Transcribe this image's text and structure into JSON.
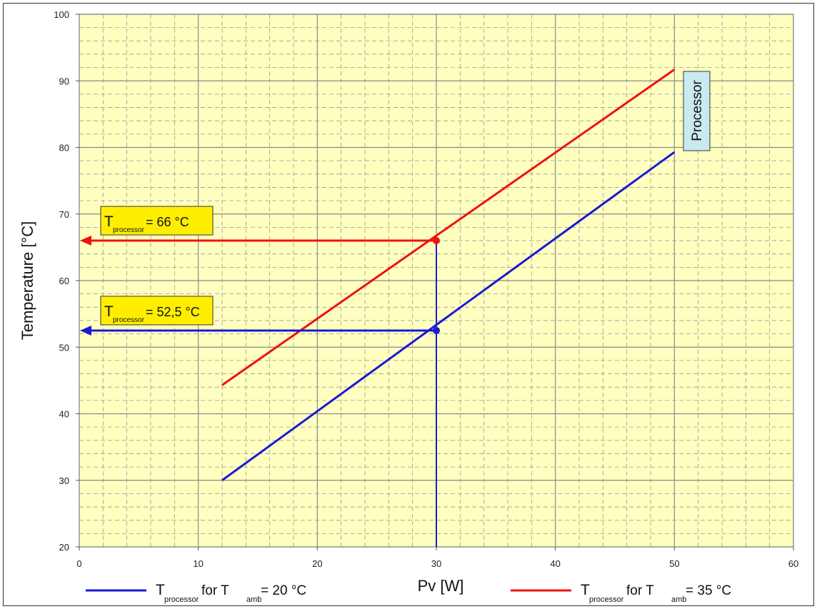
{
  "chart_data": {
    "type": "line",
    "xlabel": "Pv [W]",
    "ylabel": "Temperature [°C]",
    "xlim": [
      0,
      60
    ],
    "ylim": [
      20,
      100
    ],
    "x_ticks": [
      "0",
      "10",
      "20",
      "30",
      "40",
      "50",
      "60"
    ],
    "y_ticks": [
      "20",
      "30",
      "40",
      "50",
      "60",
      "70",
      "80",
      "90",
      "100"
    ],
    "grid": true,
    "minor_grid": true,
    "background_color": "#ffffc0",
    "series": [
      {
        "name_main": "T",
        "name_sub": "processor",
        "name_mid": " for T",
        "name_sub2": "amb",
        "name_tail": " = 20 °C",
        "color": "#1a1ad6",
        "x": [
          12,
          50
        ],
        "y": [
          30,
          79.3
        ]
      },
      {
        "name_main": "T",
        "name_sub": "processor",
        "name_mid": " for T",
        "name_sub2": "amb",
        "name_tail": " = 35 °C",
        "color": "#ee1111",
        "x": [
          12,
          50
        ],
        "y": [
          44.3,
          91.7
        ]
      }
    ],
    "legend_position": "bottom",
    "annotations": [
      {
        "main": "T",
        "sub": "processor",
        "tail": " = 66 °C",
        "value_x": 30,
        "value_y": 66,
        "color": "#ee1111",
        "box_color": "#ffee00"
      },
      {
        "main": "T",
        "sub": "processor",
        "tail": " = 52,5 °C",
        "value_x": 30,
        "value_y": 52.5,
        "color": "#1a1ad6",
        "box_color": "#ffee00"
      }
    ],
    "series_label": {
      "text": "Processor",
      "box_color": "#c8eaf0"
    }
  }
}
